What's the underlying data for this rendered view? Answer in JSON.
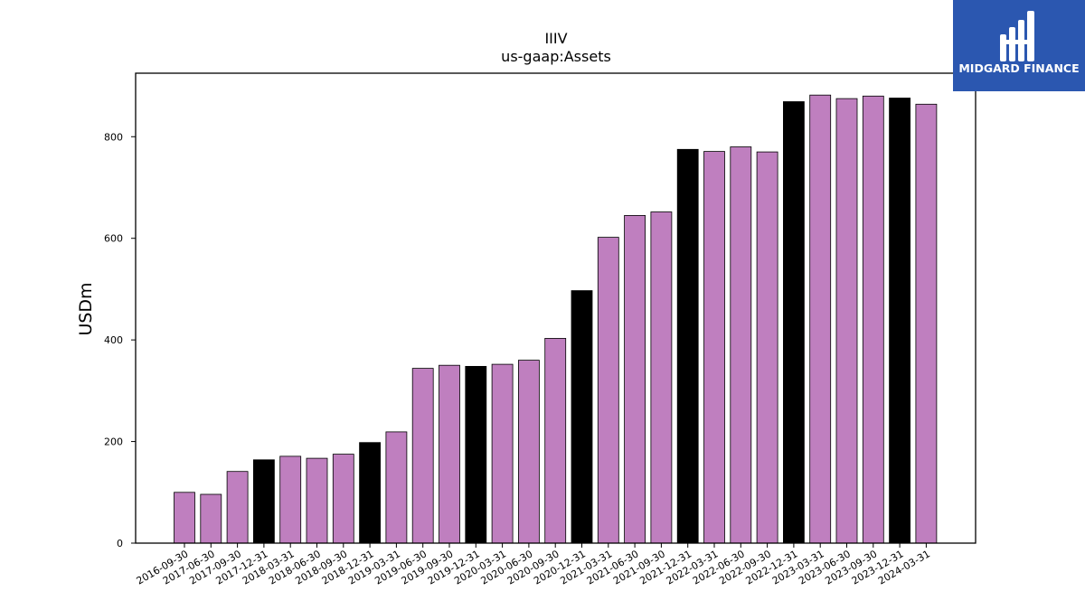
{
  "logo": {
    "text": "MIDGARD FINANCE",
    "background": "#2b57b0"
  },
  "chart_data": {
    "type": "bar",
    "title": "IIIV",
    "subtitle": "us-gaap:Assets",
    "ylabel": "USDm",
    "xlabel": "",
    "ylim": [
      0,
      925
    ],
    "yticks": [
      0,
      200,
      400,
      600,
      800
    ],
    "colors": {
      "default": "#bf7fbf",
      "year_end": "#000000"
    },
    "categories": [
      "2016-09-30",
      "2017-06-30",
      "2017-09-30",
      "2017-12-31",
      "2018-03-31",
      "2018-06-30",
      "2018-09-30",
      "2018-12-31",
      "2019-03-31",
      "2019-06-30",
      "2019-09-30",
      "2019-12-31",
      "2020-03-31",
      "2020-06-30",
      "2020-09-30",
      "2020-12-31",
      "2021-03-31",
      "2021-06-30",
      "2021-09-30",
      "2021-12-31",
      "2022-03-31",
      "2022-06-30",
      "2022-09-30",
      "2022-12-31",
      "2023-03-31",
      "2023-06-30",
      "2023-09-30",
      "2023-12-31",
      "2024-03-31"
    ],
    "values": [
      100,
      96,
      141,
      164,
      171,
      167,
      175,
      198,
      219,
      344,
      350,
      348,
      352,
      360,
      403,
      497,
      602,
      645,
      652,
      775,
      771,
      780,
      770,
      869,
      882,
      875,
      880,
      876,
      864
    ],
    "year_end": [
      false,
      false,
      false,
      true,
      false,
      false,
      false,
      true,
      false,
      false,
      false,
      true,
      false,
      false,
      false,
      true,
      false,
      false,
      false,
      true,
      false,
      false,
      false,
      true,
      false,
      false,
      false,
      true,
      false
    ],
    "grid": false,
    "legend": "none"
  }
}
